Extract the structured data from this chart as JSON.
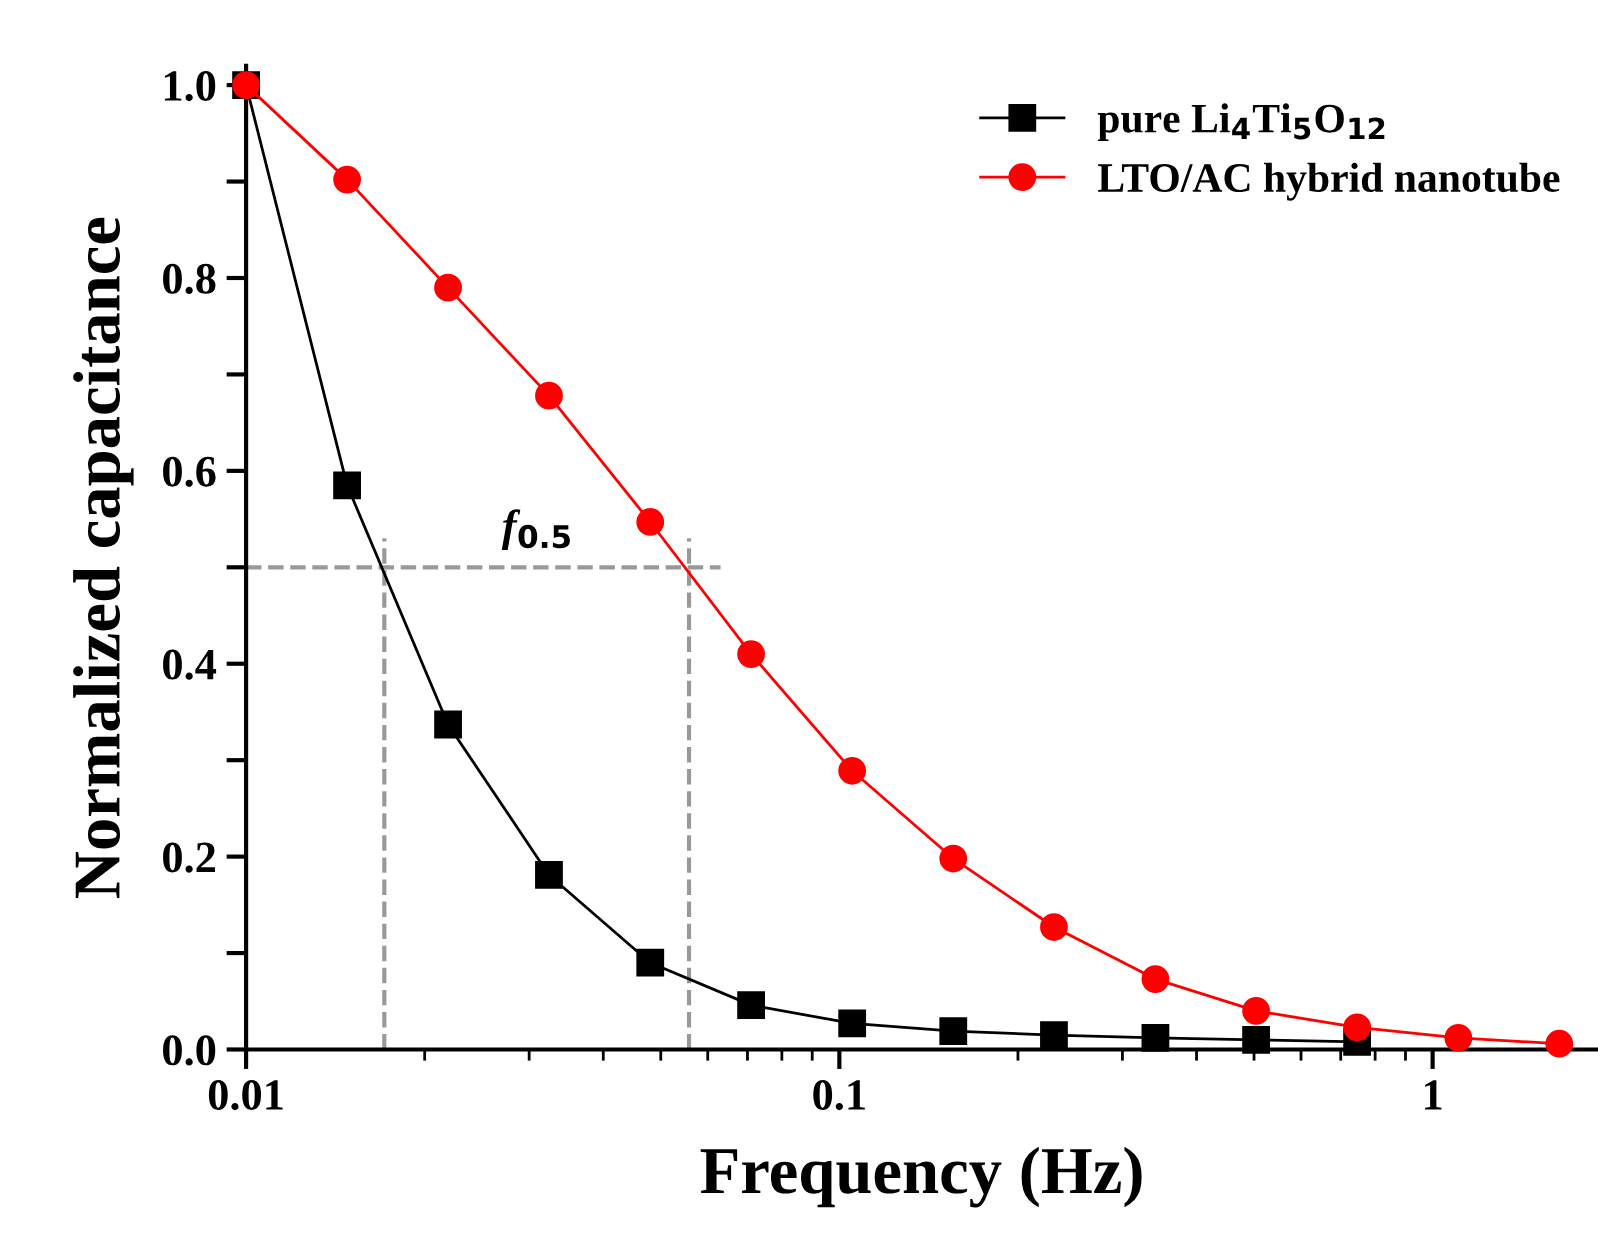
{
  "chart_data": {
    "type": "line",
    "xlabel": "Frequency (Hz)",
    "ylabel": "Normalized capacitance",
    "x": [
      0.01,
      0.0148,
      0.0219,
      0.0324,
      0.048,
      0.071,
      0.1051,
      0.1556,
      0.23,
      0.341,
      0.504,
      0.746,
      1.105,
      1.635
    ],
    "series": [
      {
        "name": "pure Li$_{4}$Ti$_{5}$O$_{12}$",
        "color": "#000000",
        "marker": "square",
        "values": [
          1.0,
          0.585,
          0.337,
          0.181,
          0.09,
          0.046,
          0.027,
          0.019,
          0.015,
          0.012,
          0.01,
          0.008,
          null,
          null
        ]
      },
      {
        "name": "LTO/AC hybrid nanotube",
        "color": "#ff0000",
        "marker": "circle",
        "values": [
          1.0,
          0.902,
          0.79,
          0.678,
          0.547,
          0.41,
          0.289,
          0.198,
          0.127,
          0.073,
          0.04,
          0.023,
          0.012,
          0.006
        ]
      }
    ],
    "log": "x",
    "xlim": [
      0.01,
      1.9
    ],
    "xticks": [
      0.01,
      0.1,
      1
    ],
    "ylim": [
      0,
      1.02
    ],
    "yticks": [
      {
        "value": 0.0,
        "label": "0.0"
      },
      {
        "value": 0.1,
        "label": null
      },
      {
        "value": 0.2,
        "label": "0.2"
      },
      {
        "value": 0.3,
        "label": null
      },
      {
        "value": 0.4,
        "label": "0.4"
      },
      {
        "value": 0.5,
        "label": null
      },
      {
        "value": 0.6,
        "label": "0.6"
      },
      {
        "value": 0.7,
        "label": null
      },
      {
        "value": 0.8,
        "label": "0.8"
      },
      {
        "value": 0.9,
        "label": null
      },
      {
        "value": 1.0,
        "label": "1.0"
      }
    ],
    "ref_lines": [
      {
        "axis": "y",
        "value": 0.5,
        "color": "#999999",
        "line_style": "dashed"
      },
      {
        "axis": "x",
        "value": 0.0171,
        "color": "#999999",
        "line_style": "dashed"
      },
      {
        "axis": "x",
        "value": 0.0558,
        "color": "#999999",
        "line_style": "dashed"
      }
    ],
    "annotations": [
      {
        "text": "f$_{0.5}$",
        "x": 0.031,
        "y": 0.5
      }
    ],
    "legend": "top right",
    "line_style": "solid",
    "grid": false
  }
}
